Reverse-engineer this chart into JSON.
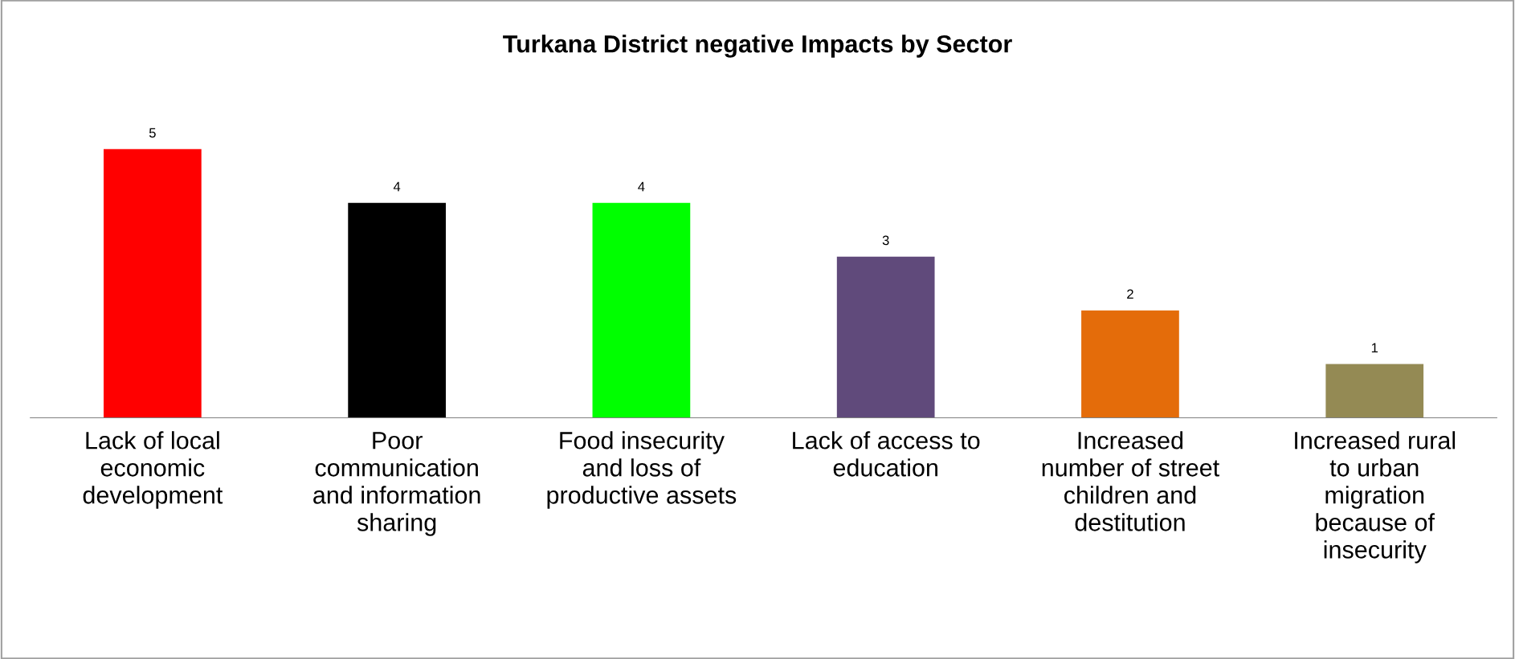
{
  "chart_data": {
    "type": "bar",
    "title": "Turkana District negative Impacts by Sector",
    "categories": [
      "Lack of local\neconomic\ndevelopment",
      "Poor\ncommunication\nand information\nsharing",
      "Food insecurity\nand loss of\nproductive assets",
      "Lack of access to\neducation",
      "Increased\nnumber of street\nchildren and\ndestitution",
      "Increased rural\nto urban\nmigration\nbecause of\ninsecurity"
    ],
    "values": [
      5,
      4,
      4,
      3,
      2,
      1
    ],
    "colors": [
      "#ff0000",
      "#000000",
      "#00ff00",
      "#604a7b",
      "#e46c0a",
      "#948a54"
    ],
    "data_labels": true,
    "grid": false,
    "legend": false
  }
}
